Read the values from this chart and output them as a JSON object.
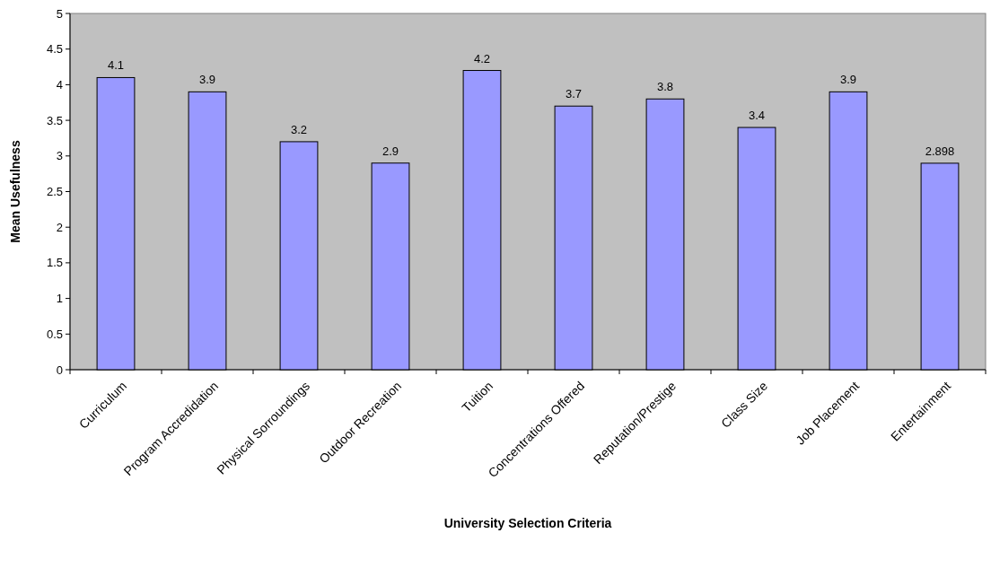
{
  "chart_data": {
    "type": "bar",
    "xlabel": "University Selection Criteria",
    "ylabel": "Mean Usefulness",
    "categories": [
      "Curriculum",
      "Program Accredidation",
      "Physical Sorroundings",
      "Outdoor Recreation",
      "Tuition",
      "Concentrations Offered",
      "Reputation/Prestige",
      "Class Size",
      "Job Placement",
      "Entertainment"
    ],
    "values": [
      4.1,
      3.9,
      3.2,
      2.9,
      4.2,
      3.7,
      3.8,
      3.4,
      3.9,
      2.898
    ],
    "color": "#9999ff",
    "ylim": [
      0,
      5
    ],
    "yticks": [
      0,
      0.5,
      1,
      1.5,
      2,
      2.5,
      3,
      3.5,
      4,
      4.5,
      5
    ],
    "grid": false,
    "data_labels": true
  }
}
